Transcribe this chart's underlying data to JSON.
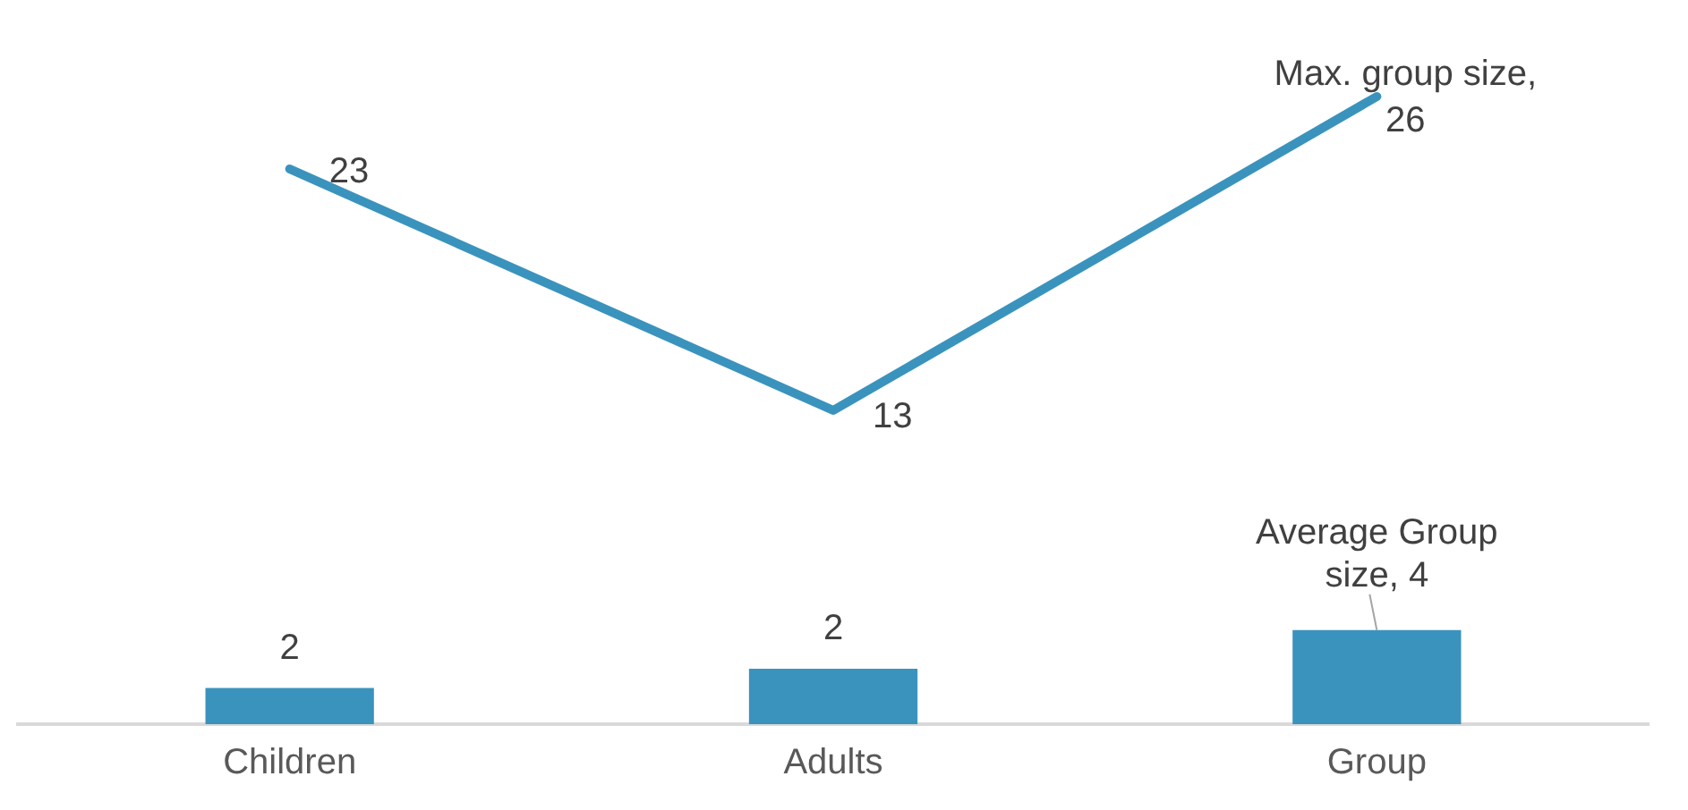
{
  "chart_data": {
    "type": "bar",
    "categories": [
      "Children",
      "Adults",
      "Group"
    ],
    "series": [
      {
        "color": "#3a93bd",
        "values": [
          1.5,
          2.3,
          3.9
        ],
        "value_labels": [
          "2",
          "2",
          "Average Group size, 4"
        ]
      },
      {
        "type": "line",
        "color": "#3a93bd",
        "values": [
          23,
          13,
          26
        ],
        "value_labels": [
          "23",
          "13",
          "Max. group size, 26"
        ]
      }
    ],
    "tick_labels": "x",
    "grid": false,
    "legend": false
  }
}
